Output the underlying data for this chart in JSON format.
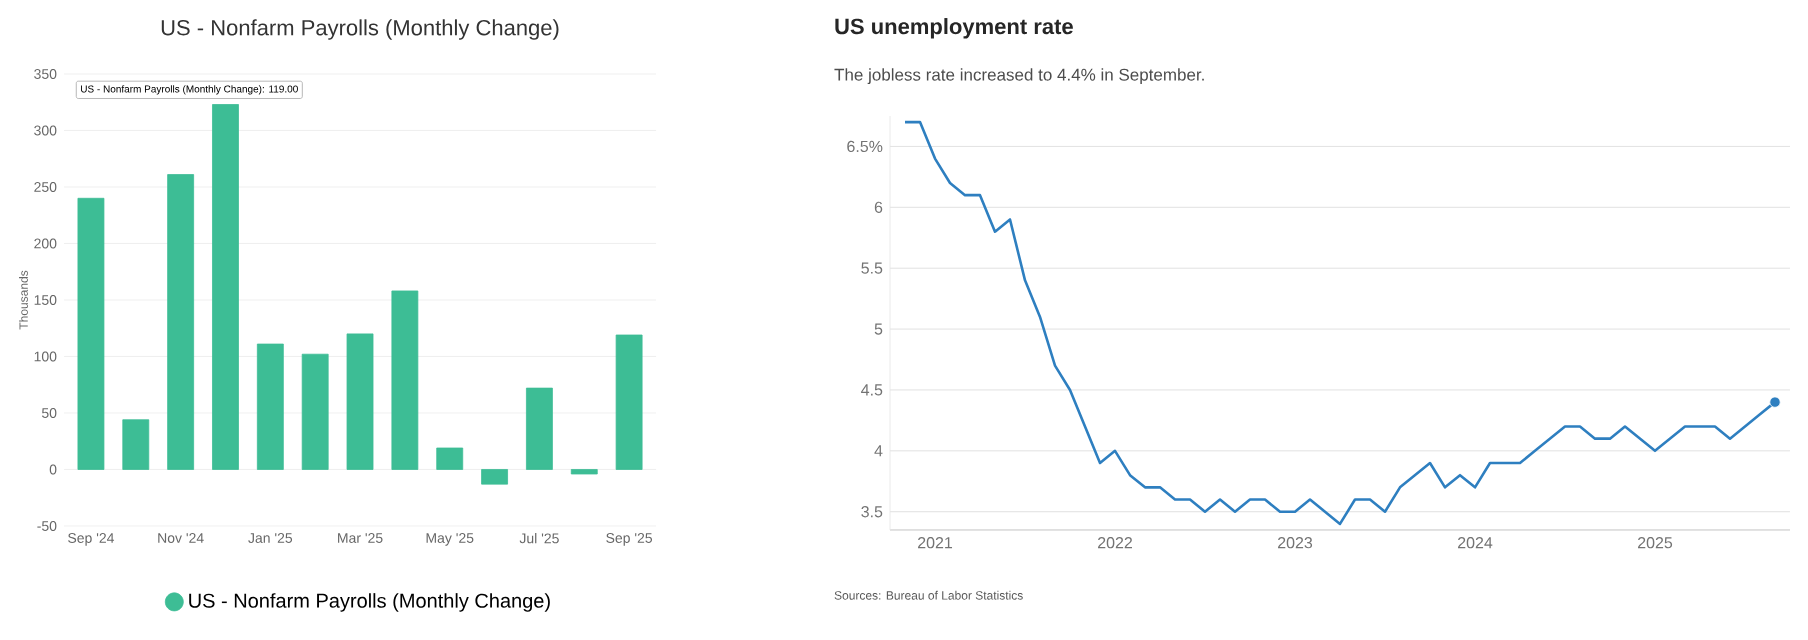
{
  "chart_data": [
    {
      "type": "bar",
      "title": "US - Nonfarm Payrolls (Monthly Change)",
      "ylabel": "Thousands",
      "categories": [
        "Sep '24",
        null,
        "Nov '24",
        null,
        "Jan '25",
        null,
        "Mar '25",
        null,
        "May '25",
        null,
        "Jul '25",
        null,
        "Sep '25"
      ],
      "series": [
        {
          "name": "US - Nonfarm Payrolls (Monthly Change)",
          "color": "#3dbd95",
          "values": [
            240,
            44,
            261,
            323,
            111,
            102,
            120,
            158,
            19,
            -13,
            72,
            -4,
            119
          ]
        }
      ],
      "ylim": [
        -50,
        350
      ],
      "yticks": [
        -50,
        0,
        50,
        100,
        150,
        200,
        250,
        300,
        350
      ],
      "grid": "y",
      "legend": "bottom",
      "annotations": [
        "US - Nonfarm Payrolls (Monthly Change): 119.00"
      ]
    },
    {
      "type": "line",
      "title": "US unemployment rate",
      "subtitle": "The jobless rate increased to 4.4% in September.",
      "x": [
        "2020-11",
        "2020-12",
        "2021-01",
        "2021-02",
        "2021-03",
        "2021-04",
        "2021-05",
        "2021-06",
        "2021-07",
        "2021-08",
        "2021-09",
        "2021-10",
        "2021-11",
        "2021-12",
        "2022-01",
        "2022-02",
        "2022-03",
        "2022-04",
        "2022-05",
        "2022-06",
        "2022-07",
        "2022-08",
        "2022-09",
        "2022-10",
        "2022-11",
        "2022-12",
        "2023-01",
        "2023-02",
        "2023-03",
        "2023-04",
        "2023-05",
        "2023-06",
        "2023-07",
        "2023-08",
        "2023-09",
        "2023-10",
        "2023-11",
        "2023-12",
        "2024-01",
        "2024-02",
        "2024-03",
        "2024-04",
        "2024-05",
        "2024-06",
        "2024-07",
        "2024-08",
        "2024-09",
        "2024-10",
        "2024-11",
        "2024-12",
        "2025-01",
        "2025-02",
        "2025-03",
        "2025-04",
        "2025-05",
        "2025-06",
        "2025-07",
        "2025-08",
        "2025-09"
      ],
      "series": [
        {
          "color": "#2e7fc0",
          "marker": "none",
          "values": [
            6.7,
            6.7,
            6.4,
            6.2,
            6.1,
            6.1,
            5.8,
            5.9,
            5.4,
            5.1,
            4.7,
            4.5,
            4.2,
            3.9,
            4.0,
            3.8,
            3.7,
            3.7,
            3.6,
            3.6,
            3.5,
            3.6,
            3.5,
            3.6,
            3.6,
            3.5,
            3.5,
            3.6,
            3.5,
            3.4,
            3.6,
            3.6,
            3.5,
            3.7,
            3.8,
            3.9,
            3.7,
            3.8,
            3.7,
            3.9,
            3.9,
            3.9,
            4.0,
            4.1,
            4.2,
            4.2,
            4.1,
            4.1,
            4.2,
            4.1,
            4.0,
            4.1,
            4.2,
            4.2,
            4.2,
            4.1,
            4.2,
            4.3,
            4.4
          ]
        },
        {
          "type": "scatter",
          "color": "#2e7fc0",
          "marker": "circle",
          "x": [
            "2025-09"
          ],
          "values": [
            4.4
          ]
        }
      ],
      "xlim": [
        "2020-10",
        "2025-10"
      ],
      "xticks": [
        "2021",
        "2022",
        "2023",
        "2024",
        "2025"
      ],
      "ylim": [
        3.35,
        6.75
      ],
      "yticks": [
        3.5,
        4,
        4.5,
        5,
        5.5,
        6,
        {
          "value": 6.5,
          "label": "6.5%"
        }
      ],
      "grid": "y",
      "annotations": [
        "Sources: Bureau of Labor Statistics"
      ]
    }
  ]
}
